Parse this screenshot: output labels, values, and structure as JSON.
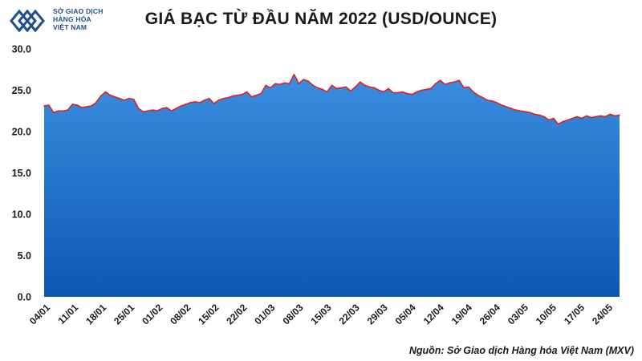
{
  "logo": {
    "line1": "SỞ GIAO DỊCH",
    "line2": "HÀNG HÓA",
    "line3": "VIỆT NAM"
  },
  "title": "GIÁ BẠC TỪ ĐẦU NĂM 2022 (USD/OUNCE)",
  "source": "Nguồn: Sở Giao dịch Hàng hóa Việt Nam (MXV)",
  "colors": {
    "fill_top": "#3a8ee0",
    "fill_bottom": "#0d57b3",
    "line": "#e02020",
    "axis_text": "#1a1a1a",
    "logo": "#1f4f8f"
  },
  "chart_data": {
    "type": "area",
    "title": "GIÁ BẠC TỪ ĐẦU NĂM 2022 (USD/OUNCE)",
    "xlabel": "",
    "ylabel": "",
    "ylim": [
      0,
      30
    ],
    "yticks": [
      "0.0",
      "5.0",
      "10.0",
      "15.0",
      "20.0",
      "25.0",
      "30.0"
    ],
    "xticks": [
      "04/01",
      "11/01",
      "18/01",
      "25/01",
      "01/02",
      "08/02",
      "15/02",
      "22/02",
      "01/03",
      "08/03",
      "15/03",
      "22/03",
      "29/03",
      "05/04",
      "12/04",
      "19/04",
      "26/04",
      "03/05",
      "10/05",
      "17/05",
      "24/05"
    ],
    "grid": false,
    "legend": "none",
    "series": [
      {
        "values": [
          23.1,
          23.2,
          22.3,
          22.5,
          22.5,
          22.6,
          23.3,
          23.2,
          22.9,
          23.0,
          23.1,
          23.5,
          24.3,
          24.8,
          24.4,
          24.2,
          24.0,
          23.8,
          24.0,
          23.9,
          22.8,
          22.4,
          22.5,
          22.6,
          22.5,
          22.8,
          22.9,
          22.5,
          22.8,
          23.1,
          23.3,
          23.5,
          23.6,
          23.5,
          23.8,
          24.0,
          23.4,
          23.8,
          24.0,
          24.1,
          24.3,
          24.4,
          24.5,
          24.8,
          24.2,
          24.4,
          24.6,
          25.6,
          25.3,
          25.8,
          25.7,
          25.9,
          25.8,
          26.9,
          25.8,
          26.3,
          26.1,
          25.6,
          25.3,
          25.1,
          24.8,
          25.6,
          25.2,
          25.3,
          25.4,
          24.9,
          25.4,
          26.0,
          25.6,
          25.4,
          25.3,
          25.0,
          24.8,
          25.2,
          24.7,
          24.7,
          24.8,
          24.6,
          24.5,
          24.8,
          25.0,
          25.1,
          25.2,
          25.8,
          26.2,
          25.7,
          25.9,
          26.0,
          26.2,
          25.3,
          25.4,
          24.8,
          24.4,
          24.1,
          23.8,
          23.7,
          23.5,
          23.2,
          23.0,
          22.8,
          22.6,
          22.5,
          22.4,
          22.3,
          22.1,
          22.0,
          21.8,
          21.4,
          21.6,
          20.9,
          21.2,
          21.4,
          21.6,
          21.8,
          21.6,
          21.9,
          21.7,
          21.8,
          21.9,
          21.8,
          22.1,
          21.9,
          22.0
        ]
      }
    ]
  }
}
